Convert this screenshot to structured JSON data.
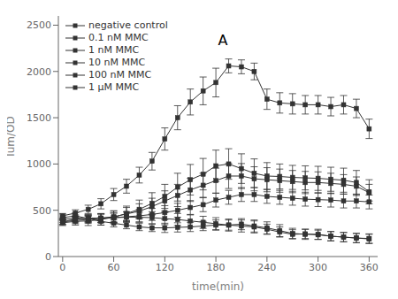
{
  "chart_data": {
    "type": "line",
    "annotation": "A",
    "xlabel": "time(min)",
    "ylabel": "lum/OD",
    "xlim": [
      -5,
      370
    ],
    "ylim": [
      0,
      2600
    ],
    "xticks": [
      0,
      60,
      120,
      180,
      240,
      300,
      360
    ],
    "yticks": [
      0,
      500,
      1000,
      1500,
      2000,
      2500
    ],
    "grid": false,
    "legend": "upper left",
    "x": [
      0,
      15,
      30,
      45,
      60,
      75,
      90,
      105,
      120,
      135,
      150,
      165,
      180,
      195,
      210,
      225,
      240,
      255,
      270,
      285,
      300,
      315,
      330,
      345,
      360
    ],
    "series": [
      {
        "name": "negative control",
        "color": "#333333",
        "marker": "square",
        "values": [
          420,
          440,
          410,
          380,
          360,
          340,
          320,
          310,
          310,
          315,
          320,
          330,
          340,
          340,
          350,
          330,
          310,
          280,
          250,
          240,
          240,
          220,
          210,
          200,
          190
        ],
        "errors": [
          30,
          35,
          35,
          40,
          40,
          40,
          40,
          40,
          50,
          50,
          50,
          50,
          55,
          55,
          60,
          65,
          65,
          65,
          55,
          55,
          55,
          50,
          50,
          50,
          50
        ]
      },
      {
        "name": "0.1 nM MMC",
        "color": "#333333",
        "marker": "square",
        "values": [
          400,
          415,
          410,
          415,
          420,
          430,
          440,
          455,
          475,
          500,
          530,
          560,
          610,
          640,
          670,
          670,
          650,
          640,
          630,
          620,
          615,
          610,
          600,
          600,
          590
        ],
        "errors": [
          30,
          35,
          40,
          45,
          50,
          55,
          65,
          65,
          75,
          75,
          75,
          75,
          75,
          75,
          75,
          75,
          75,
          75,
          75,
          75,
          75,
          75,
          75,
          75,
          75
        ]
      },
      {
        "name": "1 nM MMC",
        "color": "#333333",
        "marker": "square",
        "values": [
          375,
          390,
          400,
          415,
          430,
          460,
          490,
          540,
          600,
          660,
          720,
          770,
          820,
          870,
          870,
          840,
          830,
          820,
          810,
          800,
          800,
          790,
          780,
          760,
          690
        ],
        "errors": [
          30,
          35,
          40,
          50,
          60,
          70,
          80,
          90,
          110,
          120,
          125,
          130,
          135,
          135,
          135,
          130,
          130,
          125,
          120,
          120,
          115,
          110,
          105,
          100,
          90
        ]
      },
      {
        "name": "10 nM MMC",
        "color": "#333333",
        "marker": "square",
        "values": [
          365,
          380,
          385,
          400,
          425,
          465,
          510,
          575,
          650,
          750,
          830,
          890,
          980,
          1000,
          950,
          900,
          870,
          865,
          855,
          850,
          845,
          835,
          825,
          800,
          700
        ],
        "errors": [
          30,
          40,
          50,
          60,
          70,
          80,
          100,
          115,
          130,
          150,
          165,
          170,
          170,
          165,
          160,
          155,
          145,
          135,
          130,
          130,
          130,
          130,
          130,
          130,
          130
        ]
      },
      {
        "name": "100 nM MMC",
        "color": "#333333",
        "marker": "square",
        "values": [
          440,
          470,
          510,
          570,
          670,
          760,
          880,
          1030,
          1270,
          1500,
          1670,
          1790,
          1880,
          2060,
          2050,
          2000,
          1700,
          1660,
          1650,
          1640,
          1640,
          1620,
          1640,
          1600,
          1380
        ],
        "errors": [
          25,
          35,
          45,
          55,
          65,
          75,
          85,
          95,
          120,
          130,
          140,
          150,
          155,
          75,
          75,
          90,
          110,
          110,
          110,
          100,
          100,
          100,
          100,
          100,
          105
        ]
      },
      {
        "name": "1 μM MMC",
        "color": "#333333",
        "marker": "square",
        "values": [
          375,
          405,
          415,
          415,
          420,
          425,
          425,
          420,
          410,
          400,
          385,
          370,
          355,
          340,
          330,
          320,
          295,
          265,
          240,
          245,
          235,
          220,
          210,
          200,
          195
        ],
        "errors": [
          25,
          35,
          40,
          45,
          50,
          55,
          55,
          65,
          65,
          65,
          65,
          65,
          65,
          65,
          65,
          65,
          55,
          55,
          50,
          50,
          50,
          50,
          50,
          50,
          50
        ]
      }
    ]
  }
}
